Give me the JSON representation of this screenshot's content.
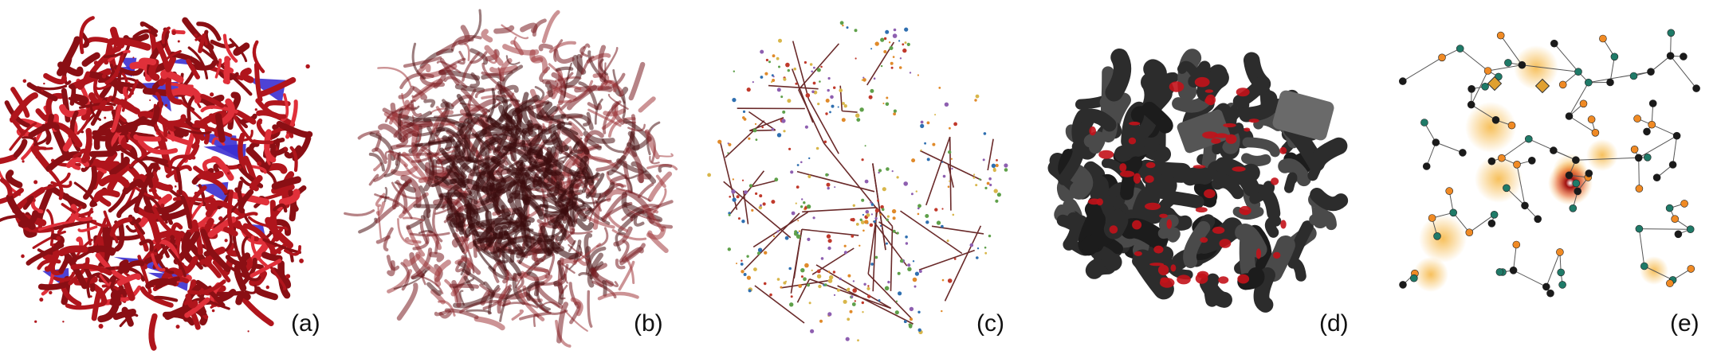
{
  "figure": {
    "panels": [
      {
        "id": "a",
        "label": "(a)",
        "colors": {
          "main": "#b0151c",
          "highlight": "#3b2fd0"
        }
      },
      {
        "id": "b",
        "label": "(b)",
        "colors": {
          "main": "#7a1e22"
        }
      },
      {
        "id": "c",
        "label": "(c)",
        "colors": {
          "edges": "#6a2a2a"
        }
      },
      {
        "id": "d",
        "label": "(d)",
        "colors": {
          "main": "#2c2c2c",
          "accent": "#c3121a"
        }
      },
      {
        "id": "e",
        "label": "(e)",
        "colors": {
          "orange": "#f08a24",
          "teal": "#1f7a68",
          "dark": "#1a1a1a",
          "glow": "#f6b94a"
        }
      }
    ]
  }
}
